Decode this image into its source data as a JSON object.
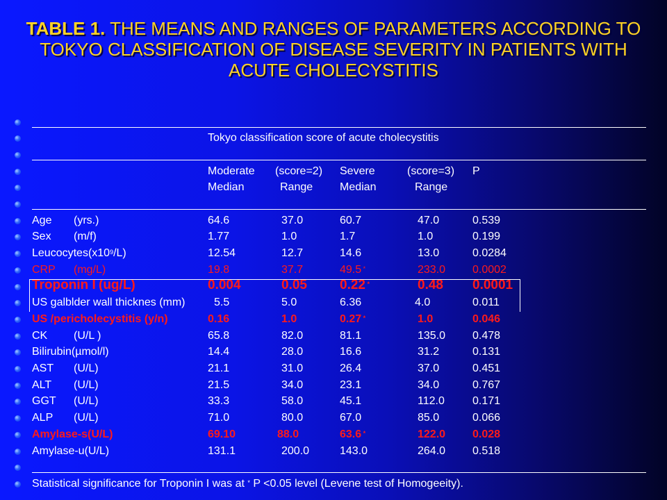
{
  "title": {
    "bold": "TABLE 1.",
    "rest": " THE MEANS AND RANGES OF PARAMETERS ACCORDING TO TOKYO CLASSIFICATION OF DISEASE SEVERITY IN PATIENTS WITH ACUTE CHOLECYSTITIS"
  },
  "header": {
    "group_title": "Tokyo classification score of acute cholecystitis",
    "moderate": "Moderate",
    "moderate_score": "(score=2)",
    "severe": "Severe",
    "severe_score": "(score=3)",
    "p": "P",
    "median1": "Median",
    "range1": "Range",
    "median2": "Median",
    "range2": "Range"
  },
  "rows": [
    {
      "param": "Age",
      "unit": "(yrs.)",
      "mod_median": "64.6",
      "mod_range": "37.0",
      "sev_median": "60.7",
      "sev_mark": "",
      "sev_range": "47.0",
      "p": "0.539",
      "style": "normal"
    },
    {
      "param": "Sex",
      "unit": "(m/f)",
      "mod_median": "1.77",
      "mod_range": "1.0",
      "sev_median": "1.7",
      "sev_mark": "",
      "sev_range": "1.0",
      "p": "0.199",
      "style": "normal"
    },
    {
      "param": "Leucocytes(x10",
      "sup": "9",
      "unit": "/L)",
      "mod_median": "12.54",
      "mod_range": "12.7",
      "sev_median": "14.6",
      "sev_mark": "",
      "sev_range": "13.0",
      "p": "0.0284",
      "style": "normal"
    },
    {
      "param": "CRP",
      "unit": "(mg/L)",
      "mod_median": "19.8",
      "mod_range": "37.7",
      "sev_median": "49.5",
      "sev_mark": "*",
      "sev_range": "233.0",
      "p": "0.0002",
      "style": "dim"
    },
    {
      "param": "Troponin I",
      "unit": "(ug/L)",
      "mod_median": "0.004",
      "mod_range": "0.05",
      "sev_median": "0.22",
      "sev_mark": "*",
      "sev_range": "0.48",
      "p": "0.0001",
      "style": "trop"
    },
    {
      "param": "US galblder wall thicknes (mm)",
      "unit": "",
      "mod_median": "5.5",
      "mod_range": "5.0",
      "sev_median": "6.36",
      "sev_mark": "",
      "sev_range": "4.0",
      "p": "0.011",
      "style": "normal"
    },
    {
      "param": "US /pericholecystitis (y/n)",
      "unit": "",
      "mod_median": "0.16",
      "mod_range": "1.0",
      "sev_median": "0.27",
      "sev_mark": "*",
      "sev_range": "1.0",
      "p": "0.046",
      "style": "red"
    },
    {
      "param": "CK",
      "unit": "(U/L )",
      "mod_median": "65.8",
      "mod_range": "82.0",
      "sev_median": "81.1",
      "sev_mark": "",
      "sev_range": "135.0",
      "p": "0.478",
      "style": "normal"
    },
    {
      "param": "Bilirubin(",
      "mu": "µ",
      "unit": "mol/l)",
      "mod_median": "14.4",
      "mod_range": "28.0",
      "sev_median": "16.6",
      "sev_mark": "",
      "sev_range": "31.2",
      "p": "0.131",
      "style": "normal"
    },
    {
      "param": "AST",
      "unit": "(U/L)",
      "mod_median": "21.1",
      "mod_range": "31.0",
      "sev_median": "26.4",
      "sev_mark": "",
      "sev_range": "37.0",
      "p": "0.451",
      "style": "normal"
    },
    {
      "param": "ALT",
      "unit": "(U/L)",
      "mod_median": "21.5",
      "mod_range": "34.0",
      "sev_median": "23.1",
      "sev_mark": "",
      "sev_range": "34.0",
      "p": "0.767",
      "style": "normal"
    },
    {
      "param": "GGT",
      "unit": "(U/L)",
      "mod_median": "33.3",
      "mod_range": "58.0",
      "sev_median": "45.1",
      "sev_mark": "",
      "sev_range": "112.0",
      "p": "0.171",
      "style": "normal"
    },
    {
      "param": "ALP",
      "unit": "(U/L)",
      "mod_median": "71.0",
      "mod_range": "80.0",
      "sev_median": "67.0",
      "sev_mark": "",
      "sev_range": "85.0",
      "p": "0.066",
      "style": "normal"
    },
    {
      "param": "Amylase-s(U/L)",
      "unit": "",
      "mod_median": "69.10",
      "mod_range": "88.0",
      "sev_median": "63.6",
      "sev_mark": "*",
      "sev_range": "122.0",
      "p": "0.028",
      "style": "red"
    },
    {
      "param": "Amylase-u(U/L)",
      "unit": "",
      "mod_median": "131.1",
      "mod_range": "200.0",
      "sev_median": "143.0",
      "sev_mark": "",
      "sev_range": "264.0",
      "p": "0.518",
      "style": "normal"
    }
  ],
  "footnote": {
    "before": "Statistical significance for Troponin I was at ",
    "mark": "*",
    "after": " P <0.05 level (Levene test of Homogeeity)."
  }
}
